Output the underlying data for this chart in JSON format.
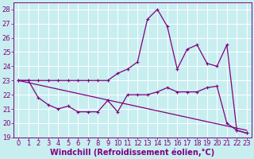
{
  "xlabel": "Windchill (Refroidissement éolien,°C)",
  "bg_color": "#c8eef0",
  "line_color": "#800080",
  "xlim": [
    -0.5,
    23.5
  ],
  "ylim": [
    19,
    28.5
  ],
  "yticks": [
    19,
    20,
    21,
    22,
    23,
    24,
    25,
    26,
    27,
    28
  ],
  "xticks": [
    0,
    1,
    2,
    3,
    4,
    5,
    6,
    7,
    8,
    9,
    10,
    11,
    12,
    13,
    14,
    15,
    16,
    17,
    18,
    19,
    20,
    21,
    22,
    23
  ],
  "series1_x": [
    0,
    1,
    2,
    3,
    4,
    5,
    6,
    7,
    8,
    9,
    10,
    11,
    12,
    13,
    14,
    15,
    16,
    17,
    18,
    19,
    20,
    21,
    22,
    23
  ],
  "series1_y": [
    23.0,
    23.0,
    23.0,
    23.0,
    23.0,
    23.0,
    23.0,
    23.0,
    23.0,
    23.0,
    23.5,
    23.8,
    24.3,
    27.3,
    28.0,
    26.8,
    23.8,
    25.2,
    25.5,
    24.2,
    24.0,
    25.5,
    19.5,
    19.3
  ],
  "series2_x": [
    0,
    1,
    2,
    3,
    4,
    5,
    6,
    7,
    8,
    9,
    10,
    11,
    12,
    13,
    14,
    15,
    16,
    17,
    18,
    19,
    20,
    21,
    22,
    23
  ],
  "series2_y": [
    23.0,
    23.0,
    21.8,
    21.3,
    21.0,
    21.2,
    20.8,
    20.8,
    20.8,
    21.6,
    20.8,
    22.0,
    22.0,
    22.0,
    22.2,
    22.5,
    22.2,
    22.2,
    22.2,
    22.5,
    22.6,
    20.0,
    19.5,
    19.3
  ],
  "series3_x": [
    0,
    23
  ],
  "series3_y": [
    23.0,
    19.5
  ],
  "grid_color": "#ffffff",
  "xlabel_fontsize": 7,
  "tick_fontsize": 6
}
